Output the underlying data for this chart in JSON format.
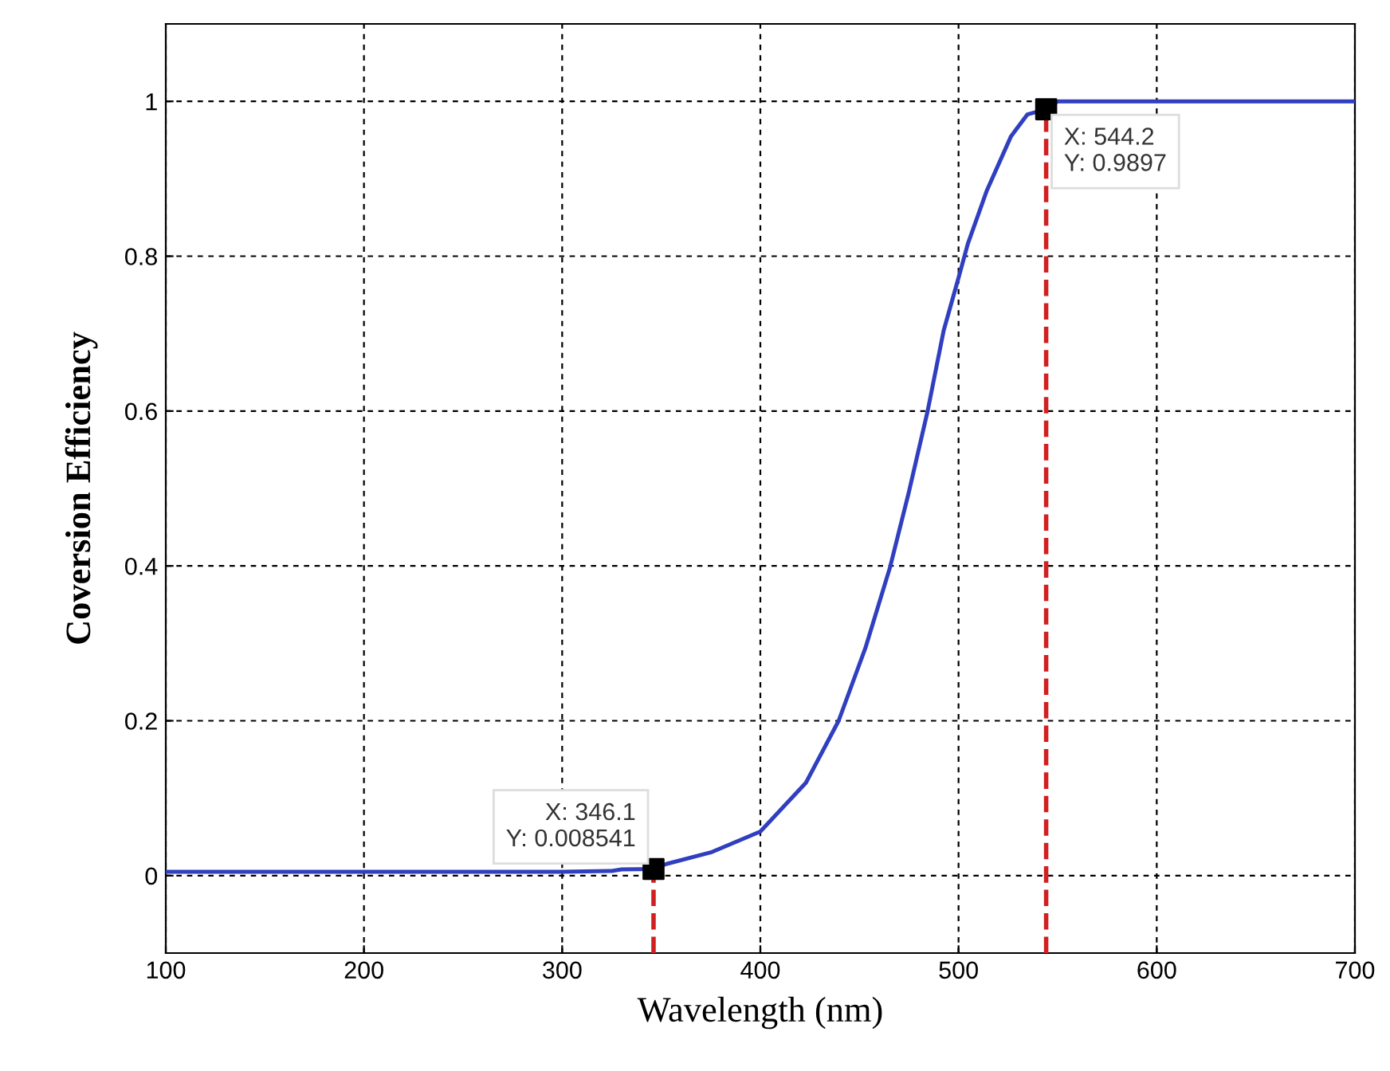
{
  "chart_data": {
    "type": "line",
    "xlabel": "Wavelength (nm)",
    "ylabel": "Coversion Efficiency",
    "xlim": [
      100,
      700
    ],
    "xticks": [
      100,
      200,
      300,
      400,
      500,
      600,
      700
    ],
    "ylim": [
      -0.1,
      1.1
    ],
    "yticks": [
      0,
      0.2,
      0.4,
      0.6,
      0.8,
      1
    ],
    "grid": true,
    "series": [
      {
        "color": "#2f3fbf",
        "x": [
          100,
          200,
          300,
          325,
          330,
          346.1,
          352.5,
          375,
          400,
          423,
          439.5,
          453,
          465.4,
          474.9,
          484.4,
          492.5,
          500.2,
          504.7,
          514.3,
          526.5,
          534.7,
          544.2,
          550,
          600,
          700
        ],
        "values": [
          0.005,
          0.005,
          0.005,
          0.006,
          0.008,
          0.008541,
          0.015,
          0.03,
          0.057,
          0.12,
          0.2,
          0.294,
          0.398,
          0.495,
          0.6,
          0.704,
          0.774,
          0.816,
          0.885,
          0.955,
          0.983,
          0.9897,
          1,
          1,
          1
        ]
      },
      {
        "color": "#d02020",
        "line_style": "dashed",
        "x": [
          346.1,
          346.1
        ],
        "values": [
          -0.1,
          0.008541
        ]
      },
      {
        "color": "#d02020",
        "line_style": "dashed",
        "x": [
          544.2,
          544.2
        ],
        "values": [
          -0.1,
          0.9897
        ]
      },
      {
        "type": "scatter",
        "marker": "square",
        "color": "#000000",
        "x": [
          346.1,
          544.2
        ],
        "values": [
          0.008541,
          0.9897
        ]
      }
    ],
    "annotations": [
      {
        "text": "X: 346.1\nY: 0.008541",
        "x": 346.1,
        "y": 0.008541
      },
      {
        "text": "X: 544.2\nY: 0.9897",
        "x": 544.2,
        "y": 0.9897
      }
    ]
  }
}
